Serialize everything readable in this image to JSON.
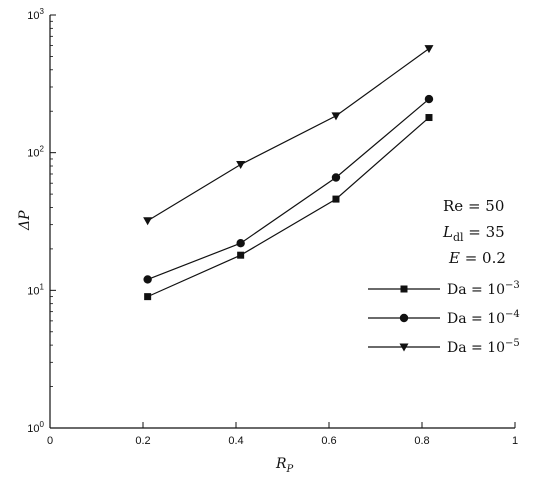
{
  "chart_data": {
    "type": "line",
    "title": "",
    "xlabel": "R",
    "xlabel_sub": "P",
    "ylabel": "ΔP",
    "xlim": [
      0,
      1
    ],
    "ylim": [
      1,
      1000
    ],
    "yscale": "log",
    "grid": false,
    "x_ticks": [
      {
        "value": 0,
        "label": "0"
      },
      {
        "value": 0.2,
        "label": "0.2"
      },
      {
        "value": 0.4,
        "label": "0.4"
      },
      {
        "value": 0.6,
        "label": "0.6"
      },
      {
        "value": 0.8,
        "label": "0.8"
      },
      {
        "value": 1,
        "label": "1"
      }
    ],
    "y_ticks": [
      {
        "value": 1,
        "base": "10",
        "exp": "0"
      },
      {
        "value": 10,
        "base": "10",
        "exp": "1"
      },
      {
        "value": 100,
        "base": "10",
        "exp": "2"
      },
      {
        "value": 1000,
        "base": "10",
        "exp": "3"
      }
    ],
    "x": [
      0.21,
      0.41,
      0.615,
      0.815
    ],
    "series": [
      {
        "name_main": "Da  =  10",
        "name_exp": "−3",
        "marker": "square",
        "values": [
          9,
          18,
          46,
          180
        ]
      },
      {
        "name_main": "Da  =  10",
        "name_exp": "−4",
        "marker": "circle",
        "values": [
          12,
          22,
          66,
          245
        ]
      },
      {
        "name_main": "Da  =  10",
        "name_exp": "−5",
        "marker": "triangle",
        "values": [
          32,
          82,
          185,
          570
        ]
      }
    ],
    "legend_position": "right",
    "annotations": [
      {
        "main": "Re  =  50",
        "sub": ""
      },
      {
        "main": "L",
        "sub": "dl",
        "suffix": " = 35"
      },
      {
        "main": "E",
        "sub": "",
        "suffix": "  =  0.2"
      }
    ]
  }
}
